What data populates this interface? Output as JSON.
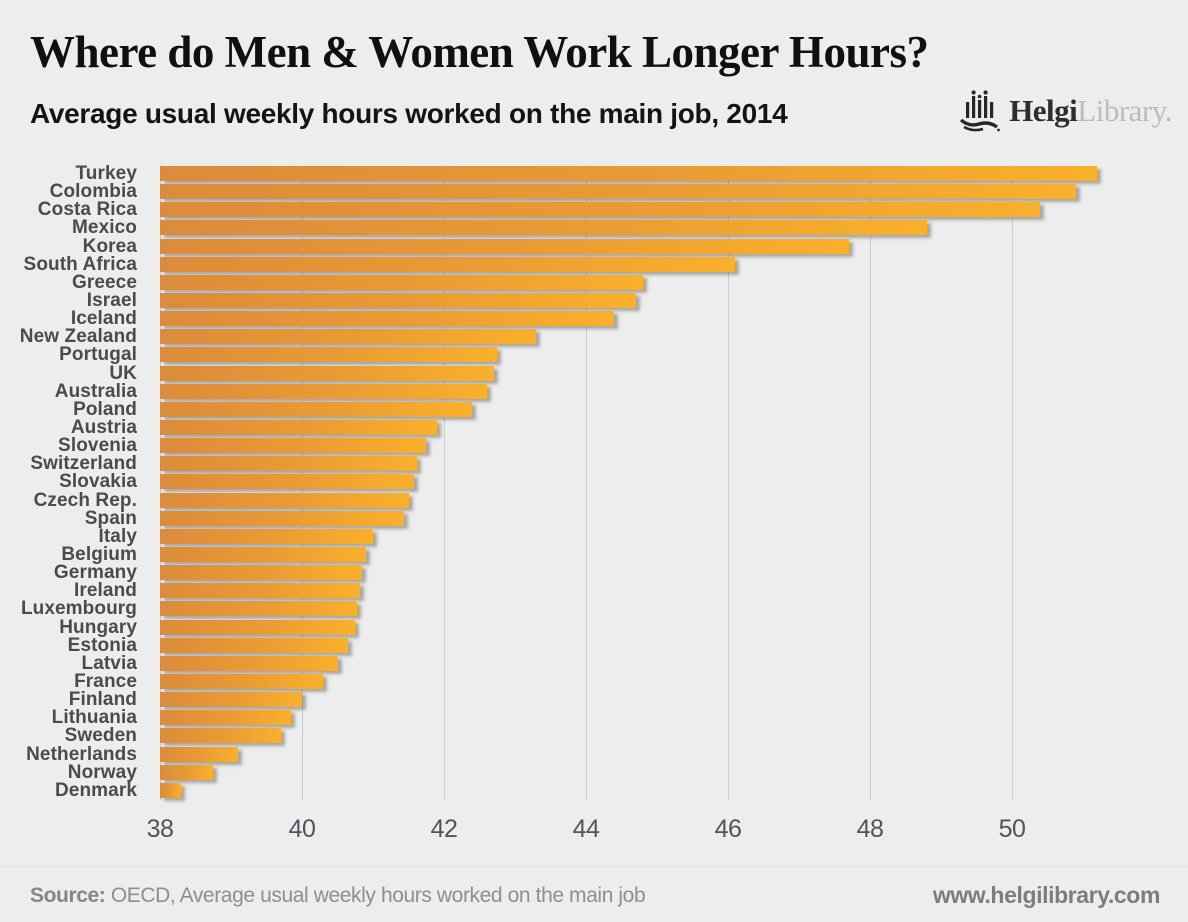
{
  "header": {
    "title": "Where do Men & Women Work Longer Hours?",
    "subtitle": "Average usual weekly hours worked on the main job, 2014",
    "logo": {
      "icon": "helgi-library-logo-icon",
      "text_primary": "Helgi",
      "text_secondary": "Library."
    }
  },
  "chart_data": {
    "type": "bar",
    "orientation": "horizontal",
    "title": "Where do Men & Women Work Longer Hours?",
    "subtitle": "Average usual weekly hours worked on the main job, 2014",
    "xlabel": "",
    "ylabel": "",
    "xlim": [
      38,
      52.1
    ],
    "xticks": [
      38,
      40,
      42,
      44,
      46,
      48,
      50
    ],
    "grid": "vertical",
    "legend": "none",
    "bar_color_start": "#DC8B3A",
    "bar_color_end": "#F9B02B",
    "categories": [
      "Turkey",
      "Colombia",
      "Costa Rica",
      "Mexico",
      "Korea",
      "South Africa",
      "Greece",
      "Israel",
      "Iceland",
      "New Zealand",
      "Portugal",
      "UK",
      "Australia",
      "Poland",
      "Austria",
      "Slovenia",
      "Switzerland",
      "Slovakia",
      "Czech Rep.",
      "Spain",
      "Italy",
      "Belgium",
      "Germany",
      "Ireland",
      "Luxembourg",
      "Hungary",
      "Estonia",
      "Latvia",
      "France",
      "Finland",
      "Lithuania",
      "Sweden",
      "Netherlands",
      "Norway",
      "Denmark"
    ],
    "values": [
      51.2,
      50.9,
      50.4,
      48.8,
      47.7,
      46.1,
      44.8,
      44.7,
      44.4,
      43.3,
      42.75,
      42.7,
      42.6,
      42.4,
      41.9,
      41.75,
      41.62,
      41.58,
      41.5,
      41.44,
      41.0,
      40.9,
      40.85,
      40.82,
      40.78,
      40.74,
      40.65,
      40.5,
      40.3,
      40.0,
      39.85,
      39.7,
      39.1,
      38.75,
      38.3
    ]
  },
  "footer": {
    "source_label": "Source:",
    "source_rest": " OECD, Average usual weekly hours worked on the main job",
    "website": "www.helgilibrary.com"
  },
  "colors": {
    "background": "#EDEDED",
    "bar_gradient_start": "#DC8B3A",
    "bar_gradient_end": "#F9B02B",
    "gridline": "#CBCBCB",
    "category_label": "#4B4B4E",
    "tick_label": "#53545B",
    "footer_text": "#8E8E8E"
  }
}
